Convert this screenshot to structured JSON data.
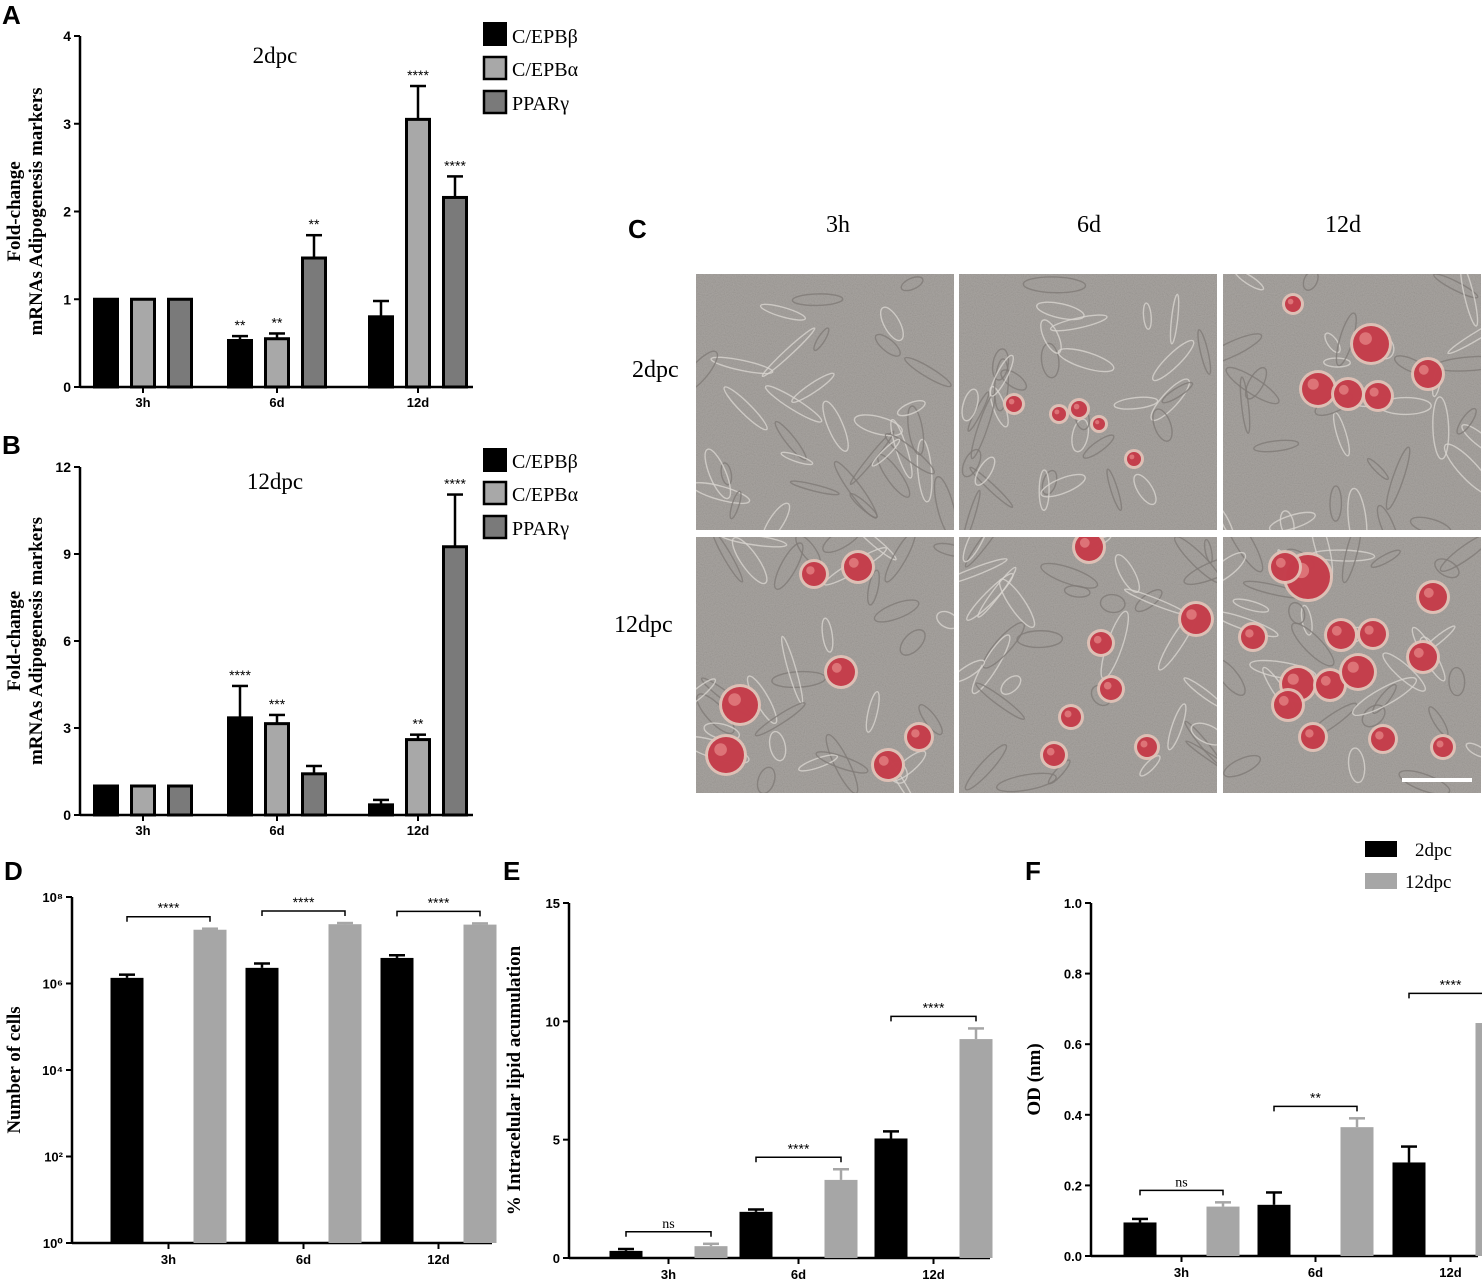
{
  "panel_letters": {
    "a": "A",
    "b": "B",
    "c": "C",
    "d": "D",
    "e": "E",
    "f": "F"
  },
  "legend_abc": [
    "C/EPBβ",
    "C/EPBα",
    "PPARγ"
  ],
  "legend_def": [
    "2dpc",
    "12dpc"
  ],
  "colors": {
    "cebpb": "#000000",
    "cebpa": "#a8a8a8",
    "ppar": "#7a7a7a",
    "dpc2": "#000000",
    "dpc12": "#a6a6a6",
    "oil_red": "#c0283a",
    "micro_bg": "#a9a5a1"
  },
  "chart_data": [
    {
      "id": "A",
      "type": "bar",
      "title": "2dpc",
      "xlabel": "",
      "ylabel": "Fold-change mRNAs Adipogenesis markers",
      "ylabel_lines": [
        "Fold-change",
        "mRNAs Adipogenesis markers"
      ],
      "categories": [
        "3h",
        "6d",
        "12d"
      ],
      "ylim": [
        0,
        4
      ],
      "yticks": [
        "0",
        "1",
        "2",
        "3",
        "4"
      ],
      "series": [
        {
          "name": "C/EPBβ",
          "values": [
            1.0,
            0.53,
            0.8
          ],
          "errors": [
            0,
            0.05,
            0.18
          ],
          "sig": [
            "",
            "**",
            ""
          ]
        },
        {
          "name": "C/EPBα",
          "values": [
            1.0,
            0.55,
            3.05
          ],
          "errors": [
            0,
            0.06,
            0.38
          ],
          "sig": [
            "",
            "**",
            "****"
          ]
        },
        {
          "name": "PPARγ",
          "values": [
            1.0,
            1.47,
            2.16
          ],
          "errors": [
            0,
            0.26,
            0.24
          ],
          "sig": [
            "",
            "**",
            "****"
          ]
        }
      ]
    },
    {
      "id": "B",
      "type": "bar",
      "title": "12dpc",
      "xlabel": "",
      "ylabel": "Fold-change mRNAs Adipogenesis markers",
      "ylabel_lines": [
        "Fold-change",
        "mRNAs Adipogenesis markers"
      ],
      "categories": [
        "3h",
        "6d",
        "12d"
      ],
      "ylim": [
        0,
        12
      ],
      "yticks": [
        "0",
        "3",
        "6",
        "9",
        "12"
      ],
      "series": [
        {
          "name": "C/EPBβ",
          "values": [
            1.0,
            3.35,
            0.35
          ],
          "errors": [
            0,
            1.1,
            0.17
          ],
          "sig": [
            "",
            "****",
            ""
          ]
        },
        {
          "name": "C/EPBα",
          "values": [
            1.0,
            3.15,
            2.6
          ],
          "errors": [
            0,
            0.3,
            0.17
          ],
          "sig": [
            "",
            "***",
            "**"
          ]
        },
        {
          "name": "PPARγ",
          "values": [
            1.0,
            1.42,
            9.25
          ],
          "errors": [
            0,
            0.27,
            1.8
          ],
          "sig": [
            "",
            "",
            "****"
          ]
        }
      ]
    },
    {
      "id": "D",
      "type": "bar",
      "title": "",
      "xlabel": "",
      "ylabel": "Number of cells",
      "scale": "log",
      "categories": [
        "3h",
        "6d",
        "12d"
      ],
      "ylim": [
        1,
        100000000
      ],
      "yticks": [
        "10⁰",
        "10²",
        "10⁴",
        "10⁶",
        "10⁸"
      ],
      "series": [
        {
          "name": "2dpc",
          "values": [
            1350000,
            2300000,
            3900000
          ],
          "errors_hi": [
            1600000,
            2900000,
            4500000
          ]
        },
        {
          "name": "12dpc",
          "values": [
            17500000,
            23500000,
            23000000
          ],
          "errors_hi": [
            18500000,
            25000000,
            24500000
          ]
        }
      ],
      "comparisons": [
        "****",
        "****",
        "****"
      ]
    },
    {
      "id": "E",
      "type": "bar",
      "title": "",
      "xlabel": "",
      "ylabel": "% Intracelular lipid acumulation",
      "categories": [
        "3h",
        "6d",
        "12d"
      ],
      "ylim": [
        0,
        15
      ],
      "yticks": [
        "0",
        "5",
        "10",
        "15"
      ],
      "series": [
        {
          "name": "2dpc",
          "values": [
            0.3,
            1.95,
            5.05
          ],
          "errors": [
            0.08,
            0.1,
            0.3
          ]
        },
        {
          "name": "12dpc",
          "values": [
            0.5,
            3.3,
            9.25
          ],
          "errors": [
            0.1,
            0.45,
            0.45
          ]
        }
      ],
      "comparisons": [
        "ns",
        "****",
        "****"
      ]
    },
    {
      "id": "F",
      "type": "bar",
      "title": "",
      "xlabel": "",
      "ylabel": "OD (nm)",
      "categories": [
        "3h",
        "6d",
        "12d"
      ],
      "ylim": [
        0,
        1.0
      ],
      "yticks": [
        "0.0",
        "0.2",
        "0.4",
        "0.6",
        "0.8",
        "1.0"
      ],
      "series": [
        {
          "name": "2dpc",
          "values": [
            0.095,
            0.145,
            0.265
          ],
          "errors": [
            0.01,
            0.035,
            0.045
          ]
        },
        {
          "name": "12dpc",
          "values": [
            0.14,
            0.365,
            0.66
          ],
          "errors": [
            0.012,
            0.025,
            0.05
          ]
        }
      ],
      "comparisons": [
        "ns",
        "**",
        "****"
      ]
    }
  ],
  "micrographs": {
    "columns": [
      "3h",
      "6d",
      "12d"
    ],
    "rows": [
      "2dpc",
      "12dpc"
    ],
    "scale_bar": true
  }
}
